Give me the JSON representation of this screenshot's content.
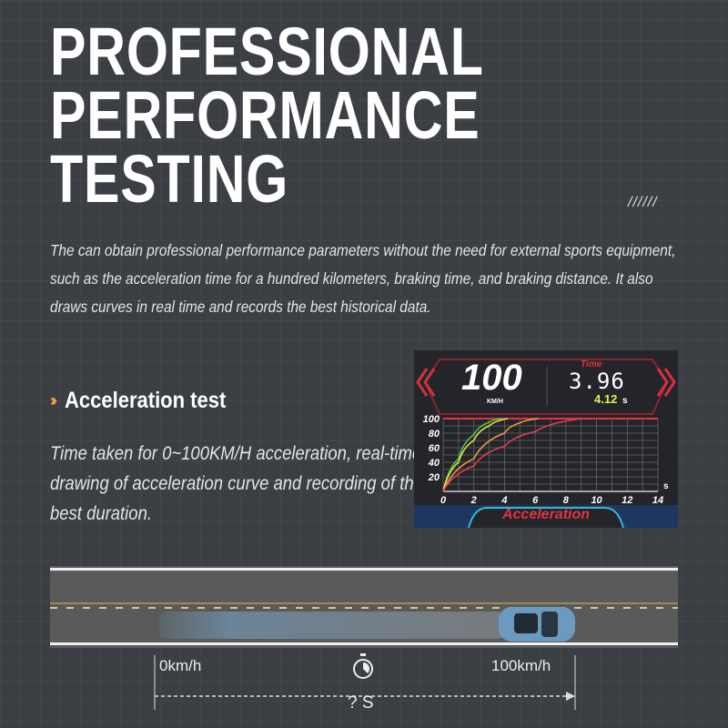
{
  "title_lines": [
    "PROFESSIONAL",
    "PERFORMANCE",
    "TESTING"
  ],
  "decor_slashes": "//////",
  "intro": "The can obtain professional performance parameters without the need for external sports equipment, such as the acceleration time for a hundred kilometers, braking time, and braking distance. It also draws curves in real time and records the best historical data.",
  "section": {
    "icon": "double-chevron-right-icon",
    "heading": "Acceleration test",
    "description": "Time taken for 0~100KM/H acceleration, real-time drawing of acceleration curve and recording of the best duration."
  },
  "display": {
    "speed": "100",
    "speed_unit": "KM/H",
    "time_label": "Time",
    "time_value": "3.96",
    "best_value": "4.12",
    "best_unit": "s",
    "mode_label": "Acceleration",
    "colors": {
      "accent": "#e0343e",
      "best": "#e6f04a",
      "cyan": "#38b6d8"
    }
  },
  "chart_data": {
    "type": "line",
    "xlabel": "s",
    "ylabel": "",
    "xlim": [
      0,
      14
    ],
    "ylim": [
      0,
      100
    ],
    "grid": true,
    "x_ticks": [
      "0",
      "2",
      "4",
      "6",
      "8",
      "10",
      "12",
      "14"
    ],
    "y_ticks": [
      "20",
      "40",
      "60",
      "80",
      "100"
    ],
    "series": [
      {
        "color": "#4fc84a",
        "points": [
          [
            0,
            0
          ],
          [
            1,
            45
          ],
          [
            2,
            78
          ],
          [
            3,
            95
          ],
          [
            3.8,
            100
          ]
        ]
      },
      {
        "color": "#e6e24a",
        "points": [
          [
            0,
            0
          ],
          [
            1,
            40
          ],
          [
            2,
            70
          ],
          [
            3,
            90
          ],
          [
            4.2,
            100
          ]
        ]
      },
      {
        "color": "#f0a040",
        "points": [
          [
            0,
            0
          ],
          [
            2,
            45
          ],
          [
            4,
            80
          ],
          [
            5,
            94
          ],
          [
            6.2,
            100
          ]
        ]
      },
      {
        "color": "#e0405a",
        "points": [
          [
            0,
            0
          ],
          [
            2,
            35
          ],
          [
            4,
            62
          ],
          [
            6,
            82
          ],
          [
            9,
            100
          ]
        ]
      }
    ]
  },
  "road": {
    "start_label": "0km/h",
    "end_label": "100km/h",
    "duration_label": "? S",
    "timer_icon": "stopwatch-icon"
  }
}
